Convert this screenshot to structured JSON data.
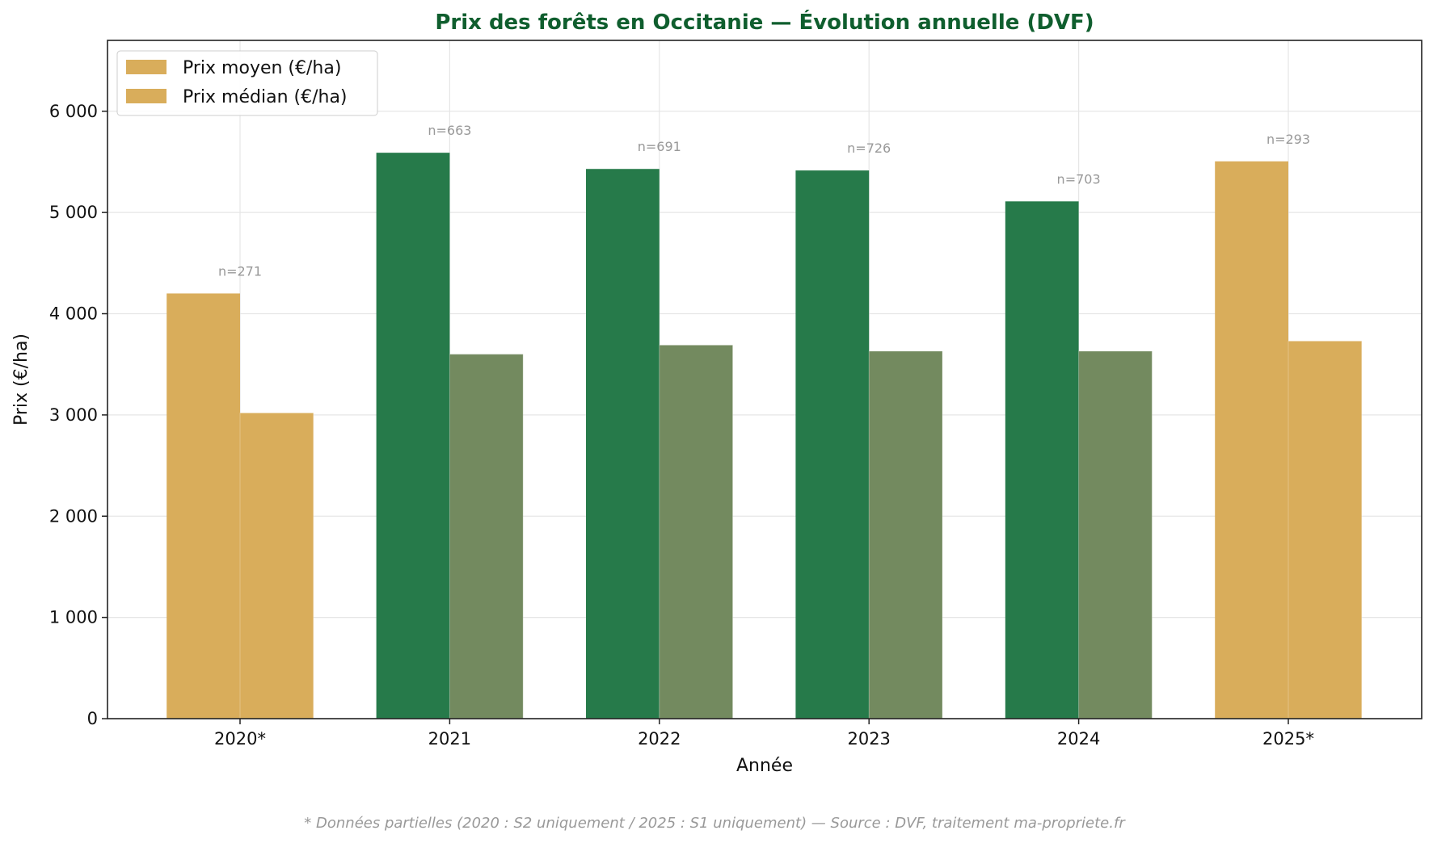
{
  "chart_data": {
    "type": "bar",
    "title": "Prix des forêts en Occitanie — Évolution annuelle (DVF)",
    "xlabel": "Année",
    "ylabel": "Prix (€/ha)",
    "ylim": [
      0,
      6700
    ],
    "yticks": [
      0,
      1000,
      2000,
      3000,
      4000,
      5000,
      6000
    ],
    "ytick_labels": [
      "0",
      "1 000",
      "2 000",
      "3 000",
      "4 000",
      "5 000",
      "6 000"
    ],
    "categories": [
      "2020*",
      "2021",
      "2022",
      "2023",
      "2024",
      "2025*"
    ],
    "partial": [
      true,
      false,
      false,
      false,
      false,
      true
    ],
    "series": [
      {
        "name": "Prix moyen (€/ha)",
        "values": [
          4200,
          5590,
          5430,
          5415,
          5110,
          5505
        ]
      },
      {
        "name": "Prix médian (€/ha)",
        "values": [
          3020,
          3600,
          3690,
          3630,
          3630,
          3730
        ]
      }
    ],
    "annotations": [
      "n=271",
      "n=663",
      "n=691",
      "n=726",
      "n=703",
      "n=293"
    ],
    "grid": true,
    "legend_position": "top-left",
    "footnote": "* Données partielles (2020 : S2 uniquement / 2025 : S1 uniquement) — Source : DVF, traitement ma-propriete.fr",
    "colors": {
      "mean_full": "#267a4a",
      "median_full": "#738a5f",
      "partial": "#d9ad5b",
      "title": "#0f5e2e",
      "annotation": "#999999"
    }
  }
}
